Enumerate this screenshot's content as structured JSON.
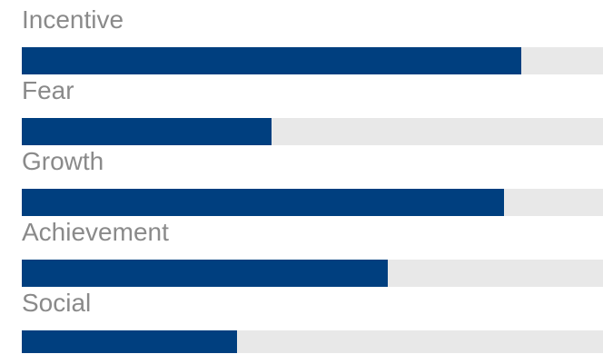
{
  "chart_data": {
    "type": "bar",
    "orientation": "horizontal",
    "categories": [
      "Incentive",
      "Fear",
      "Growth",
      "Achievement",
      "Social"
    ],
    "values": [
      0.86,
      0.43,
      0.83,
      0.63,
      0.37
    ],
    "value_scale": "fraction of full bar",
    "xlim": [
      0,
      1
    ],
    "grid": false,
    "legend": "none"
  },
  "colors": {
    "bar_fill": "#003f7f",
    "bar_track": "#e8e8e8",
    "label_text": "#8a8a8a"
  }
}
